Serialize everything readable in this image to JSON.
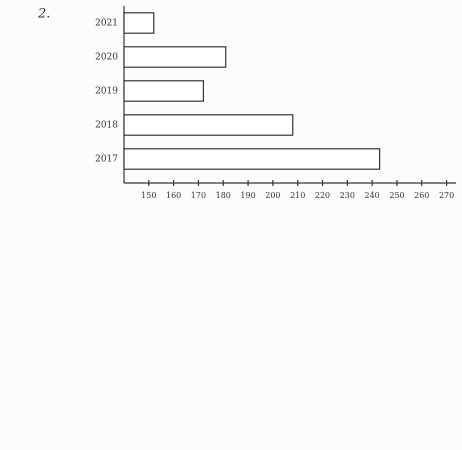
{
  "chart_data": {
    "type": "bar",
    "orientation": "horizontal",
    "title": "2.",
    "categories": [
      "2021",
      "2020",
      "2019",
      "2018",
      "2017"
    ],
    "values": [
      152,
      181,
      172,
      208,
      243
    ],
    "color": "#ffffff",
    "xlim": [
      140,
      275
    ],
    "xticks": [
      150,
      160,
      170,
      180,
      190,
      200,
      210,
      220,
      230,
      240,
      250,
      260,
      270
    ]
  }
}
